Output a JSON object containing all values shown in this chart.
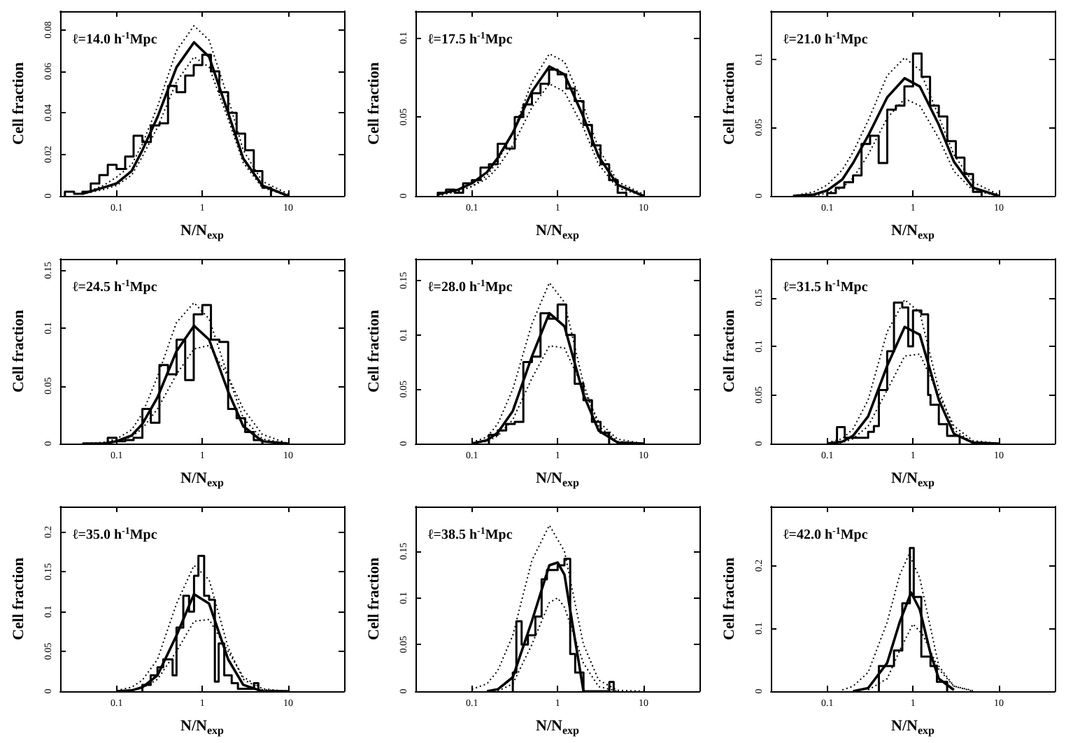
{
  "chart_data": [
    {
      "type": "line",
      "log": "x",
      "marker": "none",
      "grid": false,
      "xlabel": "N/N$_{exp}$",
      "ylabel": "Cell fraction",
      "annotations": [
        "ℓ=14.0 h$^{-1}$Mpc"
      ],
      "xlim": [
        0.022,
        45
      ],
      "xticks": [
        0.1,
        1,
        10
      ],
      "ylim": [
        0,
        0.089
      ],
      "yticks": [
        0,
        0.02,
        0.04,
        0.06,
        0.08
      ],
      "series": [
        {
          "type": "step",
          "color": "#000000",
          "x": [
            0.025,
            0.025,
            0.032,
            0.04,
            0.05,
            0.063,
            0.079,
            0.1,
            0.126,
            0.158,
            0.2,
            0.251,
            0.316,
            0.398,
            0.501,
            0.631,
            0.794,
            1,
            1.26,
            1.58,
            2,
            2.51,
            3.16,
            3.98,
            5.01,
            6.31
          ],
          "values": [
            0,
            0.002,
            0.001,
            0.002,
            0.006,
            0.01,
            0.015,
            0.013,
            0.019,
            0.029,
            0.026,
            0.034,
            0.035,
            0.053,
            0.05,
            0.058,
            0.063,
            0.068,
            0.06,
            0.05,
            0.04,
            0.03,
            0.022,
            0.012,
            0.004,
            0
          ]
        },
        {
          "type": "line",
          "color": "#000000",
          "x": [
            0.04,
            0.07,
            0.1,
            0.15,
            0.2,
            0.3,
            0.5,
            0.8,
            1.2,
            2,
            3,
            5,
            10
          ],
          "values": [
            0.001,
            0.004,
            0.006,
            0.012,
            0.022,
            0.038,
            0.062,
            0.074,
            0.067,
            0.04,
            0.018,
            0.005,
            0
          ]
        },
        {
          "type": "line",
          "color": "#000000",
          "line_style": "dotted",
          "x": [
            0.04,
            0.07,
            0.1,
            0.15,
            0.2,
            0.3,
            0.5,
            0.8,
            1.2,
            2,
            3,
            5,
            10
          ],
          "values": [
            0.001,
            0.005,
            0.009,
            0.015,
            0.025,
            0.043,
            0.07,
            0.082,
            0.075,
            0.047,
            0.022,
            0.007,
            0.001
          ]
        },
        {
          "type": "line",
          "color": "#000000",
          "line_style": "dotted",
          "x": [
            0.04,
            0.07,
            0.1,
            0.15,
            0.2,
            0.3,
            0.5,
            0.8,
            1.2,
            2,
            3,
            5,
            10
          ],
          "values": [
            0.001,
            0.003,
            0.005,
            0.01,
            0.019,
            0.033,
            0.055,
            0.067,
            0.062,
            0.037,
            0.016,
            0.004,
            0
          ]
        }
      ]
    },
    {
      "type": "line",
      "log": "x",
      "marker": "none",
      "grid": false,
      "xlabel": "N/N$_{exp}$",
      "ylabel": "Cell fraction",
      "annotations": [
        "ℓ=17.5 h$^{-1}$Mpc"
      ],
      "xlim": [
        0.022,
        45
      ],
      "xticks": [
        0.1,
        1,
        10
      ],
      "ylim": [
        0,
        0.117
      ],
      "yticks": [
        0,
        0.05,
        0.1
      ],
      "series": [
        {
          "type": "step",
          "color": "#000000",
          "x": [
            0.04,
            0.04,
            0.05,
            0.063,
            0.079,
            0.1,
            0.126,
            0.158,
            0.2,
            0.251,
            0.316,
            0.398,
            0.501,
            0.631,
            0.794,
            1,
            1.26,
            1.58,
            2,
            2.51,
            3.16,
            3.98,
            5.01,
            6.31
          ],
          "values": [
            0,
            0.002,
            0.004,
            0.002,
            0.008,
            0.01,
            0.018,
            0.02,
            0.033,
            0.03,
            0.05,
            0.058,
            0.065,
            0.071,
            0.08,
            0.077,
            0.068,
            0.06,
            0.045,
            0.032,
            0.02,
            0.01,
            0.002,
            0
          ]
        },
        {
          "type": "line",
          "color": "#000000",
          "x": [
            0.04,
            0.07,
            0.1,
            0.15,
            0.2,
            0.3,
            0.5,
            0.8,
            1.2,
            2,
            3,
            5,
            10
          ],
          "values": [
            0.001,
            0.004,
            0.008,
            0.015,
            0.024,
            0.04,
            0.066,
            0.082,
            0.077,
            0.05,
            0.025,
            0.007,
            0
          ]
        },
        {
          "type": "line",
          "color": "#000000",
          "line_style": "dotted",
          "x": [
            0.04,
            0.07,
            0.1,
            0.15,
            0.2,
            0.3,
            0.5,
            0.8,
            1.2,
            2,
            3,
            5,
            10
          ],
          "values": [
            0,
            0.003,
            0.006,
            0.013,
            0.022,
            0.04,
            0.072,
            0.09,
            0.085,
            0.057,
            0.03,
            0.009,
            0.001
          ]
        },
        {
          "type": "line",
          "color": "#000000",
          "line_style": "dotted",
          "x": [
            0.04,
            0.07,
            0.1,
            0.15,
            0.2,
            0.3,
            0.5,
            0.8,
            1.2,
            2,
            3,
            5,
            10
          ],
          "values": [
            0.001,
            0.003,
            0.006,
            0.011,
            0.018,
            0.032,
            0.056,
            0.071,
            0.066,
            0.043,
            0.02,
            0.005,
            0
          ]
        }
      ]
    },
    {
      "type": "line",
      "log": "x",
      "marker": "none",
      "grid": false,
      "xlabel": "N/N$_{exp}$",
      "ylabel": "Cell fraction",
      "annotations": [
        "ℓ=21.0 h$^{-1}$Mpc"
      ],
      "xlim": [
        0.022,
        45
      ],
      "xticks": [
        0.1,
        1,
        10
      ],
      "ylim": [
        0,
        0.135
      ],
      "yticks": [
        0,
        0.05,
        0.1
      ],
      "series": [
        {
          "type": "step",
          "color": "#000000",
          "x": [
            0.1,
            0.1,
            0.126,
            0.158,
            0.2,
            0.251,
            0.316,
            0.398,
            0.501,
            0.631,
            0.794,
            1,
            1.26,
            1.58,
            2,
            2.51,
            3.16,
            3.98,
            5.01,
            6.31
          ],
          "values": [
            0,
            0.002,
            0.006,
            0.01,
            0.015,
            0.038,
            0.044,
            0.024,
            0.063,
            0.066,
            0.08,
            0.104,
            0.087,
            0.066,
            0.058,
            0.04,
            0.028,
            0.016,
            0.003,
            0
          ]
        },
        {
          "type": "line",
          "color": "#000000",
          "x": [
            0.04,
            0.07,
            0.1,
            0.15,
            0.2,
            0.3,
            0.5,
            0.8,
            1.2,
            2,
            3,
            5,
            10
          ],
          "values": [
            0,
            0.001,
            0.004,
            0.012,
            0.024,
            0.044,
            0.072,
            0.086,
            0.08,
            0.052,
            0.025,
            0.006,
            0
          ]
        },
        {
          "type": "line",
          "color": "#000000",
          "line_style": "dotted",
          "x": [
            0.04,
            0.07,
            0.1,
            0.15,
            0.2,
            0.3,
            0.5,
            0.8,
            1.2,
            2,
            3,
            5,
            10
          ],
          "values": [
            0,
            0.003,
            0.008,
            0.019,
            0.032,
            0.055,
            0.088,
            0.101,
            0.092,
            0.058,
            0.03,
            0.01,
            0.001
          ]
        },
        {
          "type": "line",
          "color": "#000000",
          "line_style": "dotted",
          "x": [
            0.04,
            0.07,
            0.1,
            0.15,
            0.2,
            0.3,
            0.5,
            0.8,
            1.2,
            2,
            3,
            5,
            10
          ],
          "values": [
            0,
            0,
            0.002,
            0.006,
            0.013,
            0.03,
            0.057,
            0.071,
            0.066,
            0.042,
            0.018,
            0.004,
            0
          ]
        }
      ]
    },
    {
      "type": "line",
      "log": "x",
      "marker": "none",
      "grid": false,
      "xlabel": "N/N$_{exp}$",
      "ylabel": "Cell fraction",
      "annotations": [
        "ℓ=24.5 h$^{-1}$Mpc"
      ],
      "xlim": [
        0.022,
        45
      ],
      "xticks": [
        0.1,
        1,
        10
      ],
      "ylim": [
        0,
        0.16
      ],
      "yticks": [
        0,
        0.05,
        0.1,
        0.15
      ],
      "series": [
        {
          "type": "step",
          "color": "#000000",
          "x": [
            0.079,
            0.079,
            0.1,
            0.126,
            0.158,
            0.2,
            0.251,
            0.316,
            0.398,
            0.501,
            0.631,
            0.794,
            1,
            1.26,
            1.58,
            2,
            2.51,
            3.16,
            3.98,
            5.01
          ],
          "values": [
            0,
            0.005,
            0.002,
            0.003,
            0.005,
            0.03,
            0.018,
            0.068,
            0.06,
            0.09,
            0.055,
            0.112,
            0.12,
            0.09,
            0.088,
            0.03,
            0.022,
            0.01,
            0.003,
            0
          ]
        },
        {
          "type": "line",
          "color": "#000000",
          "x": [
            0.04,
            0.07,
            0.1,
            0.15,
            0.2,
            0.3,
            0.5,
            0.8,
            1.2,
            2,
            3,
            5,
            10
          ],
          "values": [
            0,
            0,
            0.002,
            0.007,
            0.017,
            0.04,
            0.08,
            0.102,
            0.09,
            0.045,
            0.015,
            0.002,
            0
          ]
        },
        {
          "type": "line",
          "color": "#000000",
          "line_style": "dotted",
          "x": [
            0.04,
            0.07,
            0.1,
            0.15,
            0.2,
            0.3,
            0.5,
            0.8,
            1.2,
            2,
            3,
            5,
            10
          ],
          "values": [
            0,
            0.001,
            0.004,
            0.012,
            0.026,
            0.058,
            0.105,
            0.122,
            0.108,
            0.058,
            0.022,
            0.004,
            0
          ]
        },
        {
          "type": "line",
          "color": "#000000",
          "line_style": "dotted",
          "x": [
            0.04,
            0.07,
            0.1,
            0.15,
            0.2,
            0.3,
            0.5,
            0.8,
            1.2,
            2,
            3,
            5,
            10
          ],
          "values": [
            0,
            0,
            0.002,
            0.006,
            0.013,
            0.03,
            0.06,
            0.082,
            0.085,
            0.058,
            0.03,
            0.008,
            0
          ]
        }
      ]
    },
    {
      "type": "line",
      "log": "x",
      "marker": "none",
      "grid": false,
      "xlabel": "N/N$_{exp}$",
      "ylabel": "Cell fraction",
      "annotations": [
        "ℓ=28.0 h$^{-1}$Mpc"
      ],
      "xlim": [
        0.022,
        45
      ],
      "xticks": [
        0.1,
        1,
        10
      ],
      "ylim": [
        0,
        0.17
      ],
      "yticks": [
        0,
        0.05,
        0.1,
        0.15
      ],
      "series": [
        {
          "type": "step",
          "color": "#000000",
          "x": [
            0.158,
            0.158,
            0.2,
            0.251,
            0.316,
            0.398,
            0.501,
            0.631,
            0.794,
            1,
            1.26,
            1.58,
            2,
            2.51,
            3.16,
            3.98
          ],
          "values": [
            0,
            0.008,
            0.012,
            0.018,
            0.02,
            0.075,
            0.08,
            0.12,
            0.115,
            0.128,
            0.1,
            0.055,
            0.04,
            0.02,
            0.01,
            0
          ]
        },
        {
          "type": "line",
          "color": "#000000",
          "x": [
            0.1,
            0.15,
            0.2,
            0.3,
            0.5,
            0.8,
            1.2,
            2,
            3,
            5,
            10
          ],
          "values": [
            0,
            0.003,
            0.01,
            0.03,
            0.08,
            0.12,
            0.108,
            0.045,
            0.012,
            0.001,
            0
          ]
        },
        {
          "type": "line",
          "color": "#000000",
          "line_style": "dotted",
          "x": [
            0.1,
            0.15,
            0.2,
            0.3,
            0.5,
            0.8,
            1.2,
            2,
            3,
            5,
            10
          ],
          "values": [
            0.001,
            0.006,
            0.018,
            0.05,
            0.11,
            0.148,
            0.13,
            0.055,
            0.016,
            0.002,
            0
          ]
        },
        {
          "type": "line",
          "color": "#000000",
          "line_style": "dotted",
          "x": [
            0.1,
            0.15,
            0.2,
            0.3,
            0.5,
            0.8,
            1.2,
            2,
            3,
            5,
            10
          ],
          "values": [
            0,
            0.002,
            0.007,
            0.022,
            0.06,
            0.09,
            0.088,
            0.05,
            0.02,
            0.004,
            0
          ]
        }
      ]
    },
    {
      "type": "line",
      "log": "x",
      "marker": "none",
      "grid": false,
      "xlabel": "N/N$_{exp}$",
      "ylabel": "Cell fraction",
      "annotations": [
        "ℓ=31.5 h$^{-1}$Mpc"
      ],
      "xlim": [
        0.022,
        45
      ],
      "xticks": [
        0.1,
        1,
        10
      ],
      "ylim": [
        0,
        0.19
      ],
      "yticks": [
        0,
        0.05,
        0.1,
        0.15
      ],
      "series": [
        {
          "type": "step",
          "color": "#000000",
          "x": [
            0.13,
            0.13,
            0.16,
            0.3,
            0.35,
            0.4,
            0.5,
            0.6,
            0.75,
            0.88,
            1.0,
            1.25,
            1.5,
            1.6,
            2.0,
            2.5,
            3.5
          ],
          "values": [
            0,
            0.017,
            0.006,
            0.012,
            0.018,
            0.055,
            0.095,
            0.145,
            0.14,
            0.1,
            0.137,
            0.133,
            0.05,
            0.04,
            0.02,
            0.008,
            0
          ]
        },
        {
          "type": "line",
          "color": "#000000",
          "x": [
            0.1,
            0.15,
            0.2,
            0.3,
            0.5,
            0.8,
            1.2,
            2,
            3,
            5,
            10
          ],
          "values": [
            0,
            0.002,
            0.008,
            0.028,
            0.08,
            0.12,
            0.112,
            0.045,
            0.01,
            0.001,
            0
          ]
        },
        {
          "type": "line",
          "color": "#000000",
          "line_style": "dotted",
          "x": [
            0.1,
            0.15,
            0.2,
            0.3,
            0.5,
            0.8,
            1.2,
            2,
            3,
            5,
            10
          ],
          "values": [
            0.001,
            0.005,
            0.015,
            0.045,
            0.115,
            0.148,
            0.135,
            0.055,
            0.014,
            0.001,
            0
          ]
        },
        {
          "type": "line",
          "color": "#000000",
          "line_style": "dotted",
          "x": [
            0.1,
            0.15,
            0.2,
            0.3,
            0.5,
            0.8,
            1.2,
            2,
            3,
            5,
            10
          ],
          "values": [
            0,
            0.001,
            0.005,
            0.018,
            0.055,
            0.09,
            0.092,
            0.05,
            0.018,
            0.003,
            0
          ]
        }
      ]
    },
    {
      "type": "line",
      "log": "x",
      "marker": "none",
      "grid": false,
      "xlabel": "N/N$_{exp}$",
      "ylabel": "Cell fraction",
      "annotations": [
        "ℓ=35.0 h$^{-1}$Mpc"
      ],
      "xlim": [
        0.022,
        45
      ],
      "xticks": [
        0.1,
        1,
        10
      ],
      "ylim": [
        0,
        0.232
      ],
      "yticks": [
        0,
        0.05,
        0.1,
        0.15,
        0.2
      ],
      "series": [
        {
          "type": "step",
          "color": "#000000",
          "x": [
            0.2,
            0.2,
            0.25,
            0.3,
            0.35,
            0.45,
            0.5,
            0.6,
            0.7,
            0.8,
            0.9,
            1.05,
            1.2,
            1.4,
            1.55,
            1.8,
            2.2,
            2.6,
            4.0,
            4.5
          ],
          "values": [
            0,
            0.008,
            0.02,
            0.03,
            0.04,
            0.02,
            0.08,
            0.12,
            0.1,
            0.145,
            0.17,
            0.12,
            0.115,
            0.012,
            0.06,
            0.02,
            0.01,
            0.003,
            0.01,
            0
          ]
        },
        {
          "type": "line",
          "color": "#000000",
          "x": [
            0.1,
            0.15,
            0.2,
            0.3,
            0.5,
            0.8,
            1.2,
            2,
            3,
            5,
            10
          ],
          "values": [
            0,
            0.001,
            0.005,
            0.02,
            0.07,
            0.122,
            0.11,
            0.04,
            0.008,
            0,
            0
          ]
        },
        {
          "type": "line",
          "color": "#000000",
          "line_style": "dotted",
          "x": [
            0.1,
            0.15,
            0.2,
            0.3,
            0.5,
            0.8,
            1.2,
            2,
            3,
            5,
            10
          ],
          "values": [
            0.001,
            0.005,
            0.014,
            0.04,
            0.11,
            0.158,
            0.14,
            0.055,
            0.015,
            0.002,
            0
          ]
        },
        {
          "type": "line",
          "color": "#000000",
          "line_style": "dotted",
          "x": [
            0.1,
            0.15,
            0.2,
            0.3,
            0.5,
            0.8,
            1.2,
            2,
            3,
            5,
            10
          ],
          "values": [
            0,
            0.001,
            0.004,
            0.015,
            0.05,
            0.088,
            0.09,
            0.05,
            0.018,
            0.003,
            0
          ]
        }
      ]
    },
    {
      "type": "line",
      "log": "x",
      "marker": "none",
      "grid": false,
      "xlabel": "N/N$_{exp}$",
      "ylabel": "Cell fraction",
      "annotations": [
        "ℓ=38.5 h$^{-1}$Mpc"
      ],
      "xlim": [
        0.022,
        45
      ],
      "xticks": [
        0.1,
        1,
        10
      ],
      "ylim": [
        0,
        0.198
      ],
      "yticks": [
        0,
        0.05,
        0.1,
        0.15
      ],
      "series": [
        {
          "type": "step",
          "color": "#000000",
          "x": [
            0.3,
            0.3,
            0.33,
            0.38,
            0.45,
            0.55,
            0.65,
            0.75,
            0.9,
            1.0,
            1.2,
            1.4,
            1.6,
            2.0,
            4.0,
            4.5
          ],
          "values": [
            0,
            0.02,
            0.075,
            0.05,
            0.06,
            0.08,
            0.12,
            0.13,
            0.13,
            0.135,
            0.142,
            0.04,
            0.02,
            0,
            0.01,
            0
          ]
        },
        {
          "type": "line",
          "color": "#000000",
          "x": [
            0.15,
            0.2,
            0.3,
            0.5,
            0.8,
            1,
            1.2,
            1.5,
            2
          ],
          "values": [
            0,
            0.002,
            0.015,
            0.075,
            0.135,
            0.138,
            0.125,
            0.07,
            0
          ]
        },
        {
          "type": "line",
          "color": "#000000",
          "line_style": "dotted",
          "x": [
            0.1,
            0.15,
            0.2,
            0.3,
            0.5,
            0.8,
            1.2,
            2,
            3,
            5,
            10
          ],
          "values": [
            0.002,
            0.008,
            0.022,
            0.06,
            0.14,
            0.178,
            0.15,
            0.05,
            0.012,
            0.001,
            0
          ]
        },
        {
          "type": "line",
          "color": "#000000",
          "line_style": "dotted",
          "x": [
            0.2,
            0.3,
            0.5,
            0.8,
            1,
            1.2,
            2,
            3,
            5
          ],
          "values": [
            0,
            0.008,
            0.05,
            0.095,
            0.1,
            0.09,
            0.03,
            0.005,
            0
          ]
        }
      ]
    },
    {
      "type": "line",
      "log": "x",
      "marker": "none",
      "grid": false,
      "xlabel": "N/N$_{exp}$",
      "ylabel": "Cell fraction",
      "annotations": [
        "ℓ=42.0 h$^{-1}$Mpc"
      ],
      "xlim": [
        0.022,
        45
      ],
      "xticks": [
        0.1,
        1,
        10
      ],
      "ylim": [
        0,
        0.294
      ],
      "yticks": [
        0,
        0.1,
        0.2
      ],
      "series": [
        {
          "type": "step",
          "color": "#000000",
          "x": [
            0.4,
            0.4,
            0.6,
            0.75,
            0.92,
            1.02,
            1.25,
            1.6,
            1.9,
            2.5
          ],
          "values": [
            0,
            0.04,
            0.065,
            0.14,
            0.228,
            0.15,
            0.055,
            0.04,
            0.015,
            0
          ]
        },
        {
          "type": "line",
          "color": "#000000",
          "x": [
            0.2,
            0.3,
            0.5,
            0.7,
            0.95,
            1.2,
            1.6,
            2,
            3
          ],
          "values": [
            0,
            0.005,
            0.045,
            0.11,
            0.157,
            0.13,
            0.06,
            0.02,
            0.002
          ]
        },
        {
          "type": "line",
          "color": "#000000",
          "line_style": "dotted",
          "x": [
            0.15,
            0.2,
            0.3,
            0.5,
            0.7,
            0.9,
            1.2,
            2,
            3,
            5
          ],
          "values": [
            0.002,
            0.008,
            0.03,
            0.11,
            0.185,
            0.218,
            0.18,
            0.04,
            0.008,
            0
          ]
        },
        {
          "type": "line",
          "color": "#000000",
          "line_style": "dotted",
          "x": [
            0.3,
            0.5,
            0.7,
            1,
            1.3,
            2,
            3,
            5
          ],
          "values": [
            0.002,
            0.02,
            0.065,
            0.107,
            0.09,
            0.035,
            0.008,
            0.001
          ]
        }
      ]
    }
  ]
}
